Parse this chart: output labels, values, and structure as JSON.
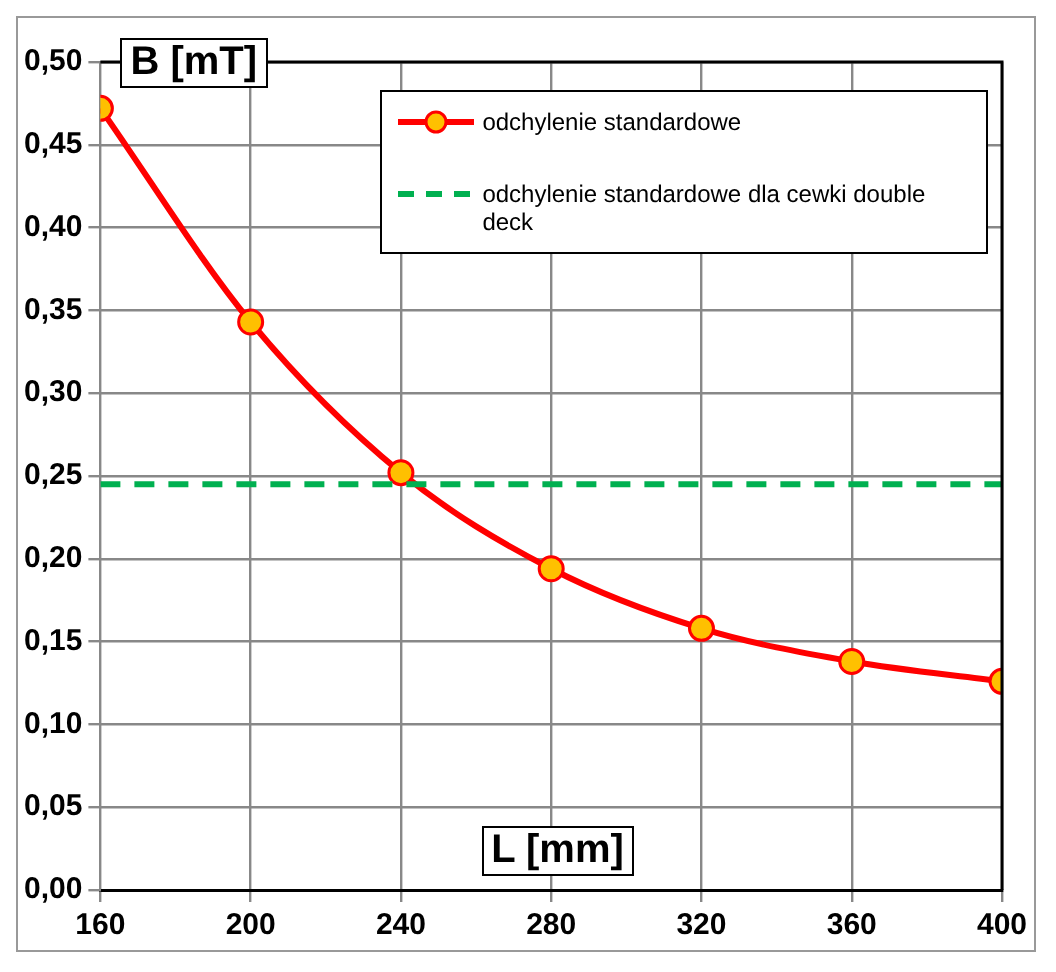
{
  "chart_data": {
    "type": "line",
    "xlabel": "L [mm]",
    "ylabel": "B [mT]",
    "x": [
      160,
      200,
      240,
      280,
      320,
      360,
      400
    ],
    "series": [
      {
        "name": "odchylenie standardowe",
        "color": "#ff0000",
        "values": [
          0.472,
          0.343,
          0.252,
          0.194,
          0.158,
          0.138,
          0.126
        ]
      }
    ],
    "ref_lines": [
      {
        "axis": "y",
        "value": 0.245,
        "label": "odchylenie standardowe dla cewki double deck",
        "color": "#00b050",
        "line_style": "dashed"
      }
    ],
    "xlim": [
      160,
      400
    ],
    "xticks": [
      160,
      200,
      240,
      280,
      320,
      360,
      400
    ],
    "ylim": [
      0,
      0.5
    ],
    "yticks": [
      {
        "value": 0,
        "label": "0,00"
      },
      {
        "value": 0.05,
        "label": "0,05"
      },
      {
        "value": 0.1,
        "label": "0,10"
      },
      {
        "value": 0.15,
        "label": "0,15"
      },
      {
        "value": 0.2,
        "label": "0,20"
      },
      {
        "value": 0.25,
        "label": "0,25"
      },
      {
        "value": 0.3,
        "label": "0,30"
      },
      {
        "value": 0.35,
        "label": "0,35"
      },
      {
        "value": 0.4,
        "label": "0,40"
      },
      {
        "value": 0.45,
        "label": "0,45"
      },
      {
        "value": 0.5,
        "label": "0,50"
      }
    ],
    "grid": true,
    "legend": "top right",
    "marker": "circle",
    "line_style": "solid"
  }
}
